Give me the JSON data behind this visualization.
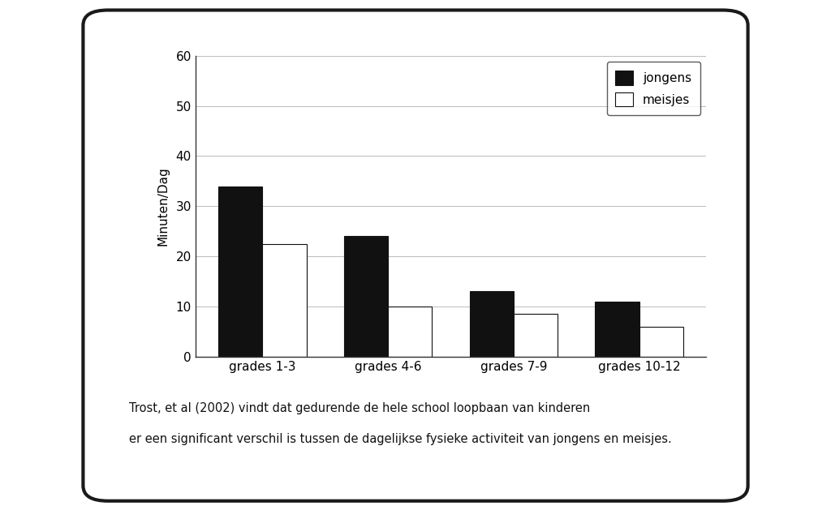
{
  "categories": [
    "grades 1-3",
    "grades 4-6",
    "grades 7-9",
    "grades 10-12"
  ],
  "jongens": [
    34,
    24,
    13,
    11
  ],
  "meisjes": [
    22.5,
    10,
    8.5,
    6
  ],
  "ylabel": "Minuten/Dag",
  "ylim": [
    0,
    60
  ],
  "yticks": [
    0,
    10,
    20,
    30,
    40,
    50,
    60
  ],
  "legend_jongens": "jongens",
  "legend_meisjes": "meisjes",
  "jongens_color": "#111111",
  "meisjes_color": "#ffffff",
  "bar_edge_color": "#111111",
  "caption_line1": "Trost, et al (2002) vindt dat gedurende de hele school loopbaan van kinderen",
  "caption_line2": "er een significant verschil is tussen de dagelijkse fysieke activiteit van jongens en meisjes.",
  "outer_bg": "#ffffff",
  "card_bg": "#ffffff",
  "card_edge": "#1a1a1a",
  "bar_width": 0.35
}
